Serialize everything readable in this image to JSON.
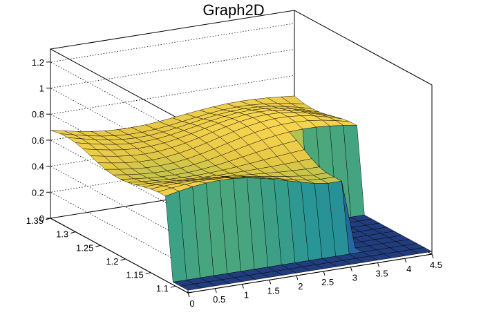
{
  "chart_data": {
    "type": "surface",
    "title": "Graph2D",
    "x_axis": {
      "min": 0,
      "max": 4.5,
      "ticks": [
        "0",
        "0.5",
        "1",
        "1.5",
        "2",
        "2.5",
        "3",
        "3.5",
        "4",
        "4.5"
      ]
    },
    "y_axis": {
      "min": 1.075,
      "max": 1.35,
      "ticks": [
        "1.1",
        "1.15",
        "1.2",
        "1.25",
        "1.3",
        "1.35"
      ]
    },
    "z_axis": {
      "min": 0,
      "max": 1.3,
      "ticks": [
        "0",
        "0.2",
        "0.4",
        "0.6",
        "0.8",
        "1",
        "1.2"
      ]
    },
    "grid": true,
    "palette": "cividis-like (blue to yellow)",
    "surface": {
      "x": [
        0,
        0.25,
        0.5,
        0.75,
        1,
        1.25,
        1.5,
        1.75,
        2,
        2.25,
        2.5,
        2.75,
        3,
        3.25,
        3.5,
        3.75,
        4,
        4.25,
        4.5
      ],
      "y": [
        1.075,
        1.09,
        1.105,
        1.12,
        1.135,
        1.15,
        1.165,
        1.18,
        1.195,
        1.21,
        1.225,
        1.24,
        1.255,
        1.27,
        1.285,
        1.3,
        1.315,
        1.33,
        1.35
      ],
      "z_plateau_min": 0.6,
      "z_plateau_max": 0.75,
      "z_low_region": "x >= 3.35 and y <= 1.21",
      "z_low_value": 0.02,
      "notes_visible": "surface rises near plateau 0.6-0.75, drops to 0 at front edge and for large x"
    }
  }
}
